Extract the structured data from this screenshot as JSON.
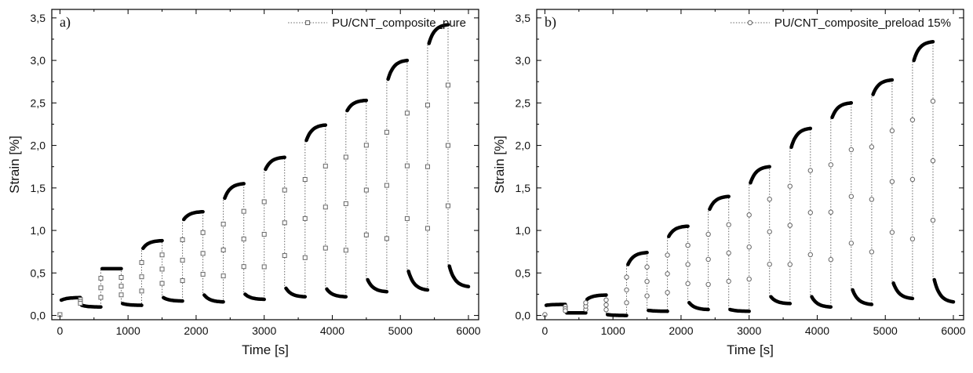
{
  "chart_data": [
    {
      "type": "line",
      "panel_label": "a)",
      "xlabel": "Time [s]",
      "ylabel": "Strain [%]",
      "xlim": [
        -120,
        6150
      ],
      "ylim": [
        -0.05,
        3.6
      ],
      "xticks": [
        0,
        1000,
        2000,
        3000,
        4000,
        5000,
        6000
      ],
      "yticks": [
        0.0,
        0.5,
        1.0,
        1.5,
        2.0,
        2.5,
        3.0,
        3.5
      ],
      "ytick_labels": [
        "0,0",
        "0,5",
        "1,0",
        "1,5",
        "2,0",
        "2,5",
        "3,0",
        "3,5"
      ],
      "grid": false,
      "legend_position": "top-right",
      "series": [
        {
          "name": "PU/CNT_composite_pure",
          "color": "#666666",
          "marker": "square",
          "steps": [
            {
              "t0": 0,
              "t1": 300,
              "from": 0.18,
              "to": 0.21
            },
            {
              "t0": 300,
              "t1": 600,
              "from": 0.12,
              "to": 0.1
            },
            {
              "t0": 600,
              "t1": 900,
              "from": 0.55,
              "to": 0.55
            },
            {
              "t0": 900,
              "t1": 1200,
              "from": 0.14,
              "to": 0.12
            },
            {
              "t0": 1200,
              "t1": 1500,
              "from": 0.79,
              "to": 0.88
            },
            {
              "t0": 1500,
              "t1": 1800,
              "from": 0.21,
              "to": 0.17
            },
            {
              "t0": 1800,
              "t1": 2100,
              "from": 1.13,
              "to": 1.22
            },
            {
              "t0": 2100,
              "t1": 2400,
              "from": 0.24,
              "to": 0.16
            },
            {
              "t0": 2400,
              "t1": 2700,
              "from": 1.38,
              "to": 1.55
            },
            {
              "t0": 2700,
              "t1": 3000,
              "from": 0.25,
              "to": 0.19
            },
            {
              "t0": 3000,
              "t1": 3300,
              "from": 1.72,
              "to": 1.86
            },
            {
              "t0": 3300,
              "t1": 3600,
              "from": 0.32,
              "to": 0.22
            },
            {
              "t0": 3600,
              "t1": 3900,
              "from": 2.06,
              "to": 2.24
            },
            {
              "t0": 3900,
              "t1": 4200,
              "from": 0.31,
              "to": 0.22
            },
            {
              "t0": 4200,
              "t1": 4500,
              "from": 2.41,
              "to": 2.53
            },
            {
              "t0": 4500,
              "t1": 4800,
              "from": 0.42,
              "to": 0.28
            },
            {
              "t0": 4800,
              "t1": 5100,
              "from": 2.78,
              "to": 3.0
            },
            {
              "t0": 5100,
              "t1": 5400,
              "from": 0.52,
              "to": 0.3
            },
            {
              "t0": 5400,
              "t1": 5700,
              "from": 3.2,
              "to": 3.42
            },
            {
              "t0": 5700,
              "t1": 6000,
              "from": 0.58,
              "to": 0.34
            }
          ]
        }
      ]
    },
    {
      "type": "line",
      "panel_label": "b)",
      "xlabel": "Time [s]",
      "ylabel": "Strain [%]",
      "xlim": [
        -120,
        6150
      ],
      "ylim": [
        -0.05,
        3.6
      ],
      "xticks": [
        0,
        1000,
        2000,
        3000,
        4000,
        5000,
        6000
      ],
      "yticks": [
        0.0,
        0.5,
        1.0,
        1.5,
        2.0,
        2.5,
        3.0,
        3.5
      ],
      "ytick_labels": [
        "0,0",
        "0,5",
        "1,0",
        "1,5",
        "2,0",
        "2,5",
        "3,0",
        "3,5"
      ],
      "grid": false,
      "legend_position": "top-right",
      "series": [
        {
          "name": "PU/CNT_composite_preload 15%",
          "color": "#666666",
          "marker": "circle",
          "steps": [
            {
              "t0": 0,
              "t1": 300,
              "from": 0.12,
              "to": 0.13
            },
            {
              "t0": 300,
              "t1": 600,
              "from": 0.03,
              "to": 0.03
            },
            {
              "t0": 600,
              "t1": 900,
              "from": 0.19,
              "to": 0.24
            },
            {
              "t0": 900,
              "t1": 1200,
              "from": 0.01,
              "to": 0.0
            },
            {
              "t0": 1200,
              "t1": 1500,
              "from": 0.6,
              "to": 0.74
            },
            {
              "t0": 1500,
              "t1": 1800,
              "from": 0.06,
              "to": 0.05
            },
            {
              "t0": 1800,
              "t1": 2100,
              "from": 0.93,
              "to": 1.05
            },
            {
              "t0": 2100,
              "t1": 2400,
              "from": 0.15,
              "to": 0.07
            },
            {
              "t0": 2400,
              "t1": 2700,
              "from": 1.25,
              "to": 1.4
            },
            {
              "t0": 2700,
              "t1": 3000,
              "from": 0.07,
              "to": 0.05
            },
            {
              "t0": 3000,
              "t1": 3300,
              "from": 1.56,
              "to": 1.75
            },
            {
              "t0": 3300,
              "t1": 3600,
              "from": 0.22,
              "to": 0.14
            },
            {
              "t0": 3600,
              "t1": 3900,
              "from": 1.98,
              "to": 2.2
            },
            {
              "t0": 3900,
              "t1": 4200,
              "from": 0.22,
              "to": 0.1
            },
            {
              "t0": 4200,
              "t1": 4500,
              "from": 2.33,
              "to": 2.5
            },
            {
              "t0": 4500,
              "t1": 4800,
              "from": 0.3,
              "to": 0.13
            },
            {
              "t0": 4800,
              "t1": 5100,
              "from": 2.6,
              "to": 2.77
            },
            {
              "t0": 5100,
              "t1": 5400,
              "from": 0.38,
              "to": 0.2
            },
            {
              "t0": 5400,
              "t1": 5700,
              "from": 3.0,
              "to": 3.22
            },
            {
              "t0": 5700,
              "t1": 6000,
              "from": 0.42,
              "to": 0.16
            }
          ]
        }
      ]
    }
  ]
}
